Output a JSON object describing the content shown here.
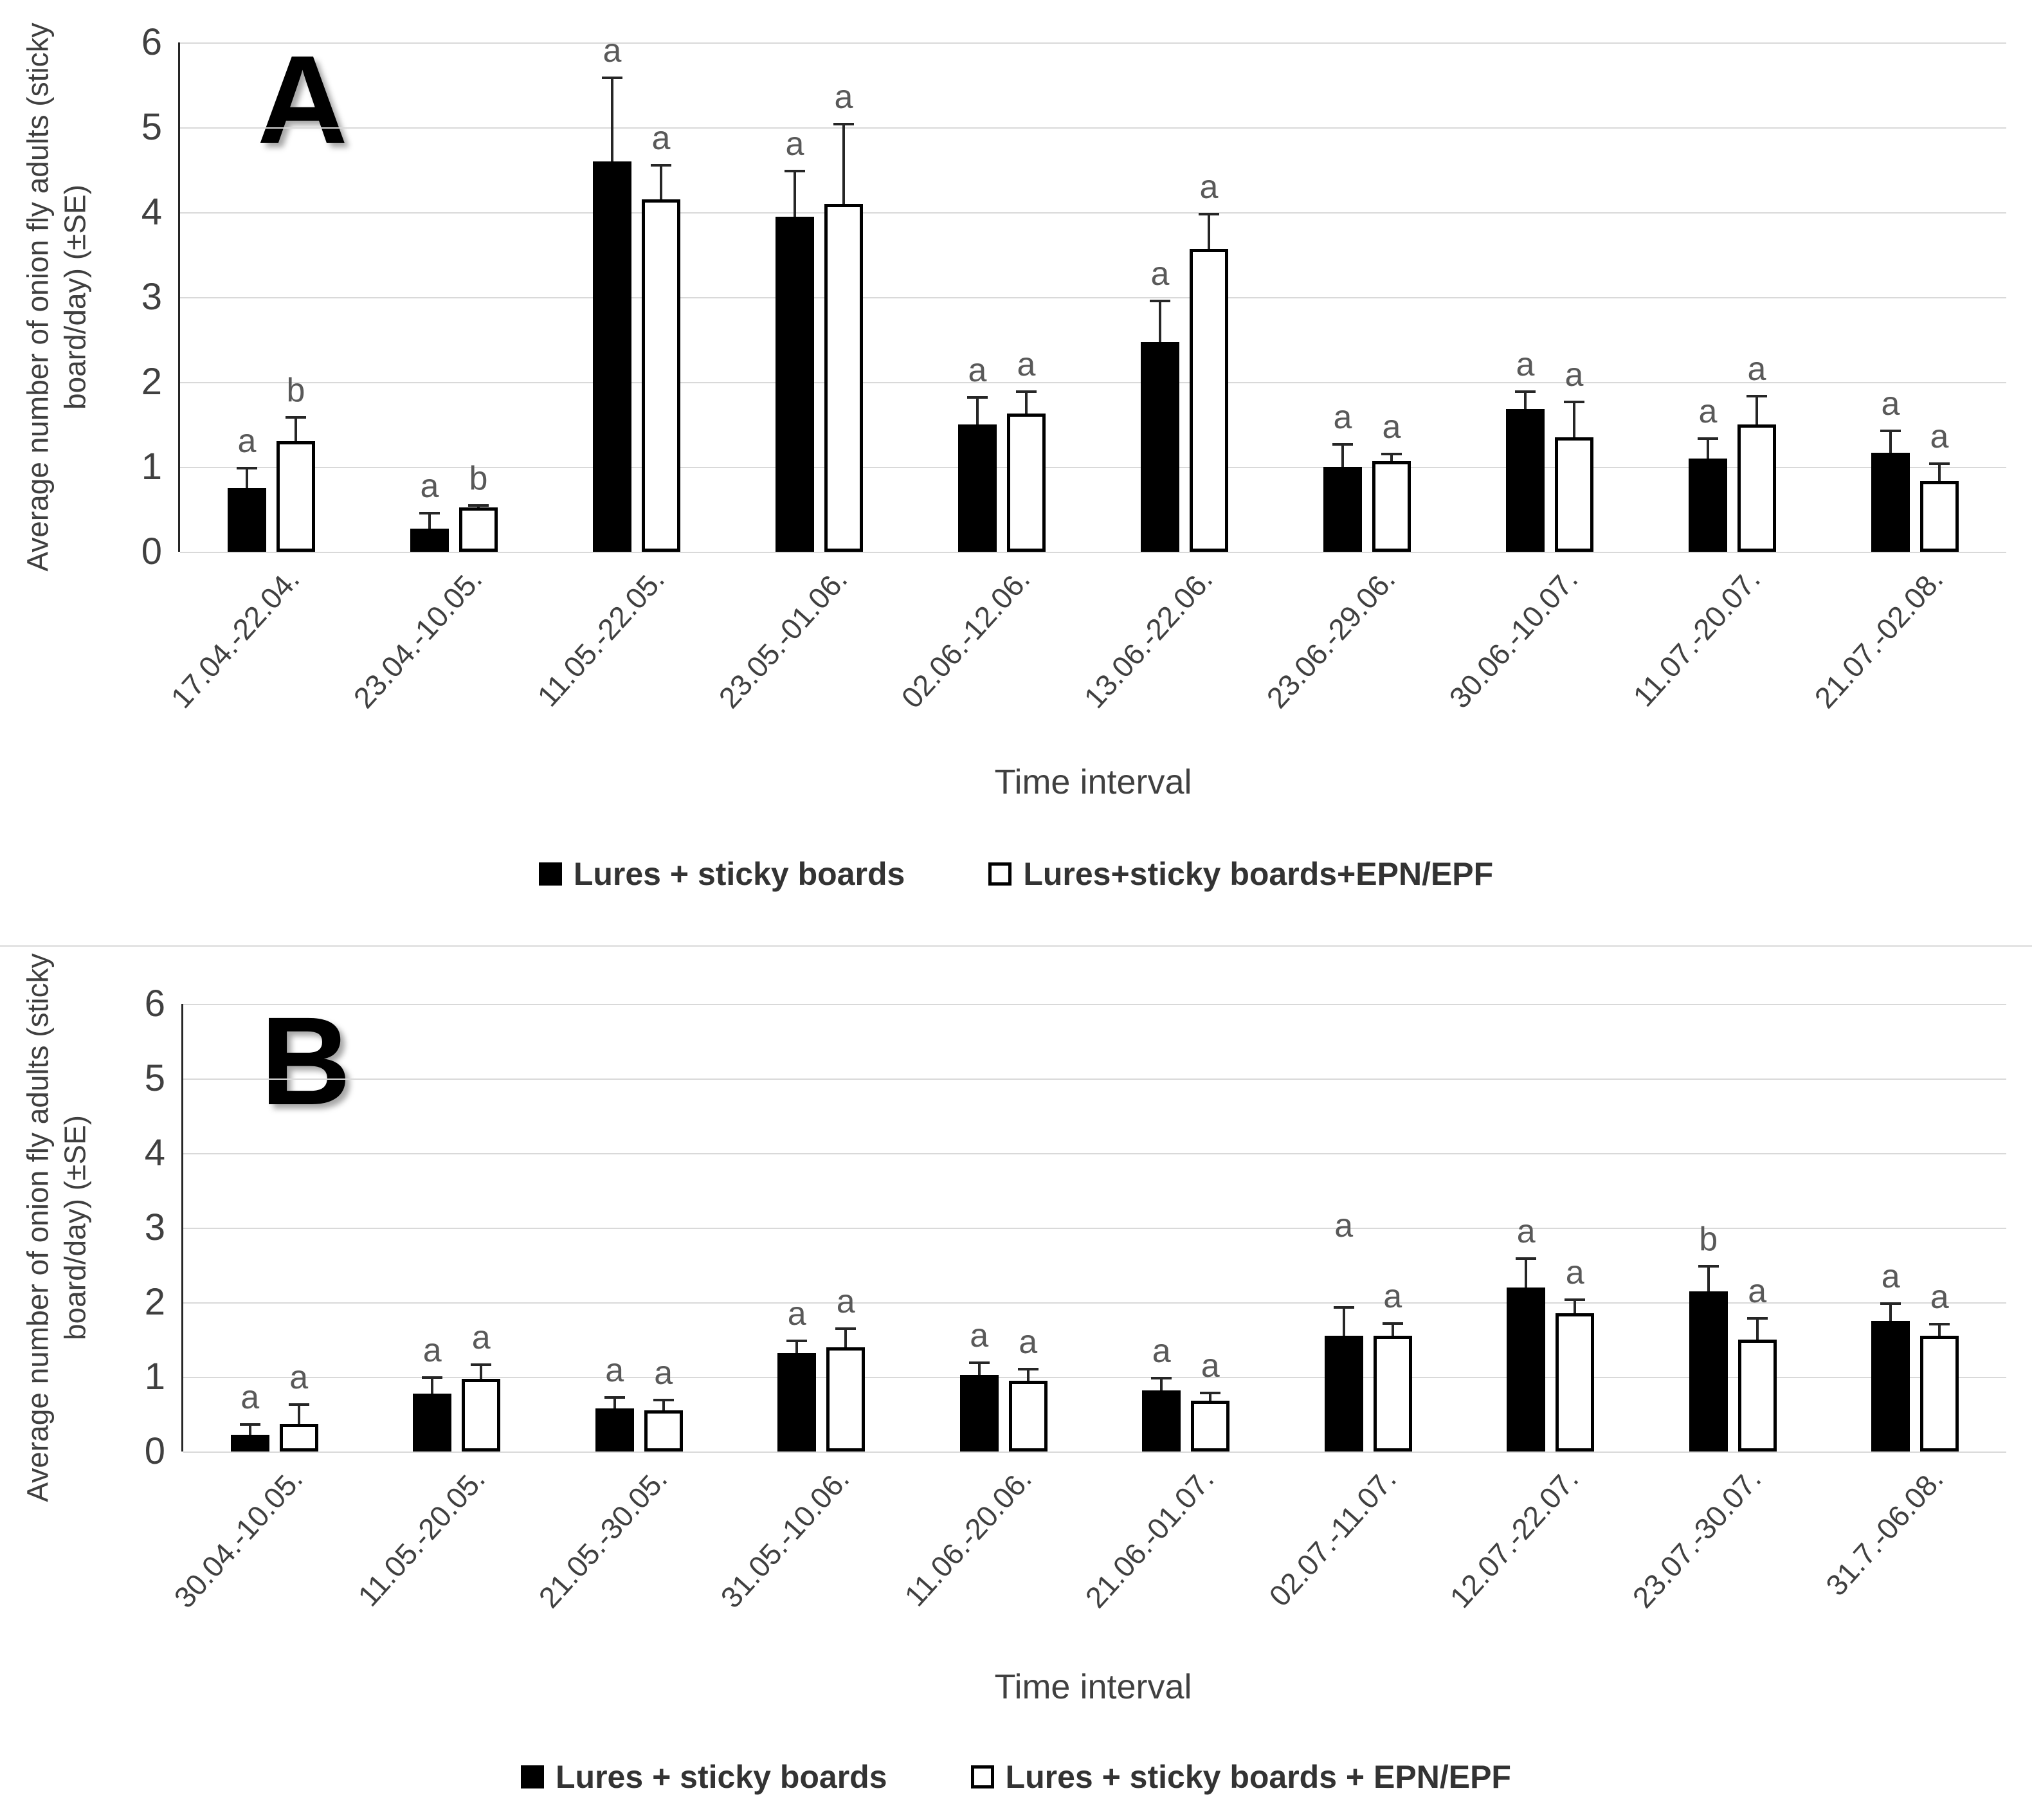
{
  "figure": {
    "xlabel": "Time interval",
    "ylabel_line1": "Average number of onion fly adults (sticky",
    "ylabel_line2": "board/day) (±SE)",
    "colors": {
      "filled_series": "#000000",
      "open_series": "#ffffff",
      "gridline": "#d9d9d9",
      "annotation_text": "#595959"
    }
  },
  "chart_data": [
    {
      "type": "bar",
      "panel_label": "A",
      "title": "",
      "xlabel": "Time interval",
      "ylabel": "Average number of onion fly adults (sticky board/day) (±SE)",
      "ylabel_lines": [
        "Average number of onion fly adults (sticky",
        "board/day) (±SE)"
      ],
      "ylim": [
        0,
        6
      ],
      "yticks": [
        0,
        1,
        2,
        3,
        4,
        5,
        6
      ],
      "grid": true,
      "legend_position": "bottom",
      "error_bars": "upper SE",
      "categories": [
        "17.04.-22.04.",
        "23.04.-10.05.",
        "11.05.-22.05.",
        "23.05.-01.06.",
        "02.06.-12.06.",
        "13.06.-22.06.",
        "23.06.-29.06.",
        "30.06.-10.07.",
        "11.07.-20.07.",
        "21.07.-02.08."
      ],
      "series": [
        {
          "name": "Lures + sticky boards",
          "fill": "#000000",
          "values": [
            0.75,
            0.27,
            4.6,
            3.95,
            1.5,
            2.47,
            1.0,
            1.68,
            1.1,
            1.17
          ],
          "se": [
            0.25,
            0.2,
            1.0,
            0.55,
            0.33,
            0.5,
            0.28,
            0.22,
            0.25,
            0.27
          ],
          "letters": [
            "a",
            "a",
            "a",
            "a",
            "a",
            "a",
            "a",
            "a",
            "a",
            "a"
          ]
        },
        {
          "name": "Lures+sticky boards+EPN/EPF",
          "fill": "#ffffff",
          "values": [
            1.3,
            0.52,
            4.15,
            4.1,
            1.63,
            3.57,
            1.07,
            1.35,
            1.5,
            0.83
          ],
          "se": [
            0.3,
            0.04,
            0.42,
            0.95,
            0.27,
            0.42,
            0.1,
            0.43,
            0.35,
            0.22
          ],
          "letters": [
            "b",
            "b",
            "a",
            "a",
            "a",
            "a",
            "a",
            "a",
            "a",
            "a"
          ]
        }
      ]
    },
    {
      "type": "bar",
      "panel_label": "B",
      "title": "",
      "xlabel": "Time interval",
      "ylabel": "Average number of onion fly adults (sticky board/day) (±SE)",
      "ylabel_lines": [
        "Average number of onion fly adults (sticky",
        "board/day) (±SE)"
      ],
      "ylim": [
        0,
        6
      ],
      "yticks": [
        0,
        1,
        2,
        3,
        4,
        5,
        6
      ],
      "grid": true,
      "legend_position": "bottom",
      "error_bars": "upper SE",
      "categories": [
        "30.04.-10.05.",
        "11.05.-20.05.",
        "21.05.-30.05.",
        "31.05.-10.06.",
        "11.06.-20.06.",
        "21.06.-01.07.",
        "02.07.-11.07.",
        "12.07.-22.07.",
        "23.07.-30.07.",
        "31.7.-06.08."
      ],
      "series": [
        {
          "name": "Lures + sticky boards",
          "fill": "#000000",
          "values": [
            0.22,
            0.78,
            0.58,
            1.32,
            1.03,
            0.82,
            1.55,
            2.2,
            2.15,
            1.75
          ],
          "se": [
            0.16,
            0.23,
            0.16,
            0.18,
            0.18,
            0.18,
            0.4,
            0.4,
            0.35,
            0.25
          ],
          "letters": [
            "a",
            "a",
            "a",
            "a",
            "a",
            "a",
            "a",
            "a",
            "b",
            "a"
          ],
          "letter_y": {
            "6": 2.8
          }
        },
        {
          "name": "Lures + sticky boards + EPN/EPF",
          "fill": "#ffffff",
          "values": [
            0.37,
            0.97,
            0.55,
            1.4,
            0.95,
            0.68,
            1.55,
            1.85,
            1.5,
            1.55
          ],
          "se": [
            0.28,
            0.21,
            0.16,
            0.26,
            0.17,
            0.12,
            0.18,
            0.2,
            0.3,
            0.17
          ],
          "letters": [
            "a",
            "a",
            "a",
            "a",
            "a",
            "a",
            "a",
            "a",
            "a",
            "a"
          ]
        }
      ]
    }
  ]
}
